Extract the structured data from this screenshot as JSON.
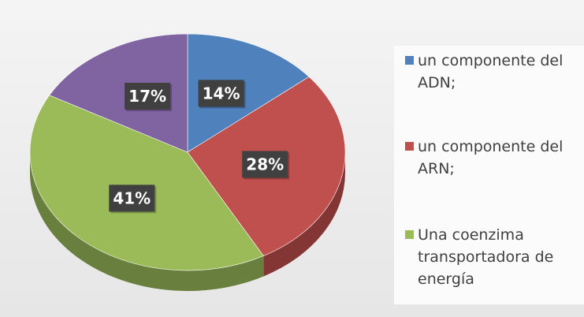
{
  "chart_data": {
    "type": "pie",
    "categories": [
      "un componente del ADN;",
      "un componente del ARN;",
      "Una coenzima transportadora de energía",
      null
    ],
    "values": [
      14,
      28,
      41,
      17
    ],
    "value_labels": [
      "14%",
      "28%",
      "41%",
      "17%"
    ],
    "colors": [
      "#4f81bd",
      "#c0504d",
      "#9bbb59",
      "#8064a2"
    ],
    "legend": "right"
  }
}
